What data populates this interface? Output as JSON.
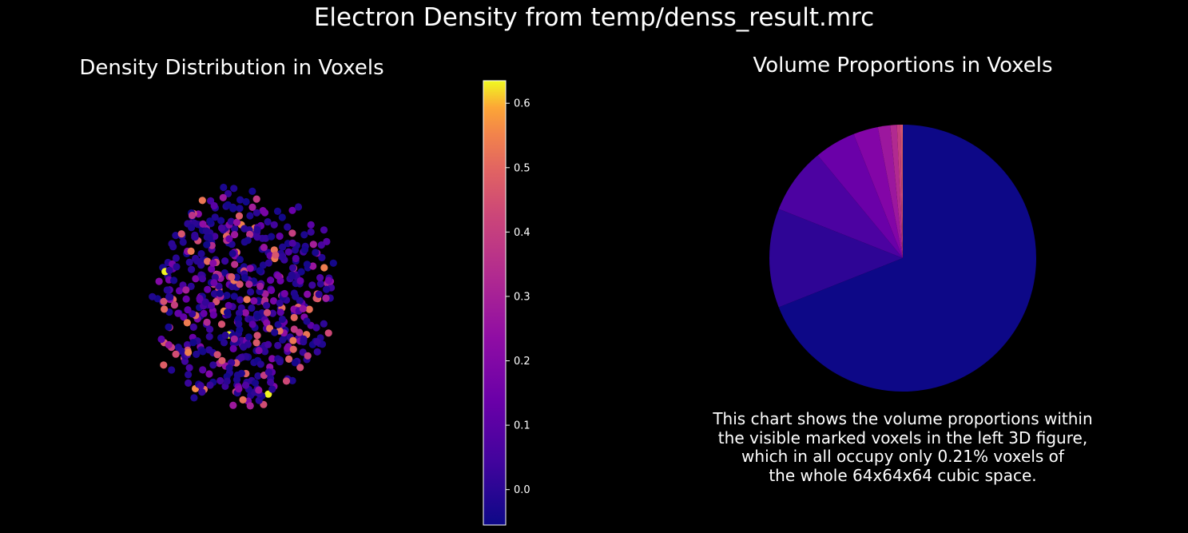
{
  "chart_data": [
    {
      "type": "scatter",
      "title": "Density Distribution in Voxels",
      "colormap": "plasma",
      "colorbar": {
        "range": [
          -0.055,
          0.635
        ],
        "ticks": [
          0.0,
          0.1,
          0.2,
          0.3,
          0.4,
          0.5,
          0.6
        ],
        "tick_labels": [
          "0.0",
          "0.1",
          "0.2",
          "0.3",
          "0.4",
          "0.5",
          "0.6"
        ]
      },
      "axes_visible": false,
      "point_count_approx": 560,
      "value_summary": {
        "min": -0.05,
        "max": 0.63,
        "typical": 0.02
      }
    },
    {
      "type": "pie",
      "title": "Volume Proportions in Voxels",
      "start_angle_deg": 90,
      "slices": [
        {
          "value": 0.69,
          "color": "#0d0887"
        },
        {
          "value": 0.12,
          "color": "#2e0595"
        },
        {
          "value": 0.08,
          "color": "#4c02a1"
        },
        {
          "value": 0.05,
          "color": "#6a00a8"
        },
        {
          "value": 0.03,
          "color": "#8305a7"
        },
        {
          "value": 0.015,
          "color": "#9c179e"
        },
        {
          "value": 0.008,
          "color": "#b12a90"
        },
        {
          "value": 0.004,
          "color": "#c33d80"
        },
        {
          "value": 0.002,
          "color": "#d35171"
        },
        {
          "value": 0.001,
          "color": "#e16462"
        }
      ]
    }
  ],
  "suptitle": "Electron Density from temp/denss_result.mrc",
  "caption": {
    "lines": [
      "This chart shows the volume proportions within",
      "the visible marked voxels in the left 3D figure,",
      "which in all occupy only 0.21% voxels of",
      "the whole 64x64x64 cubic space."
    ]
  },
  "colors": {
    "background": "#000000",
    "text": "#ffffff"
  }
}
